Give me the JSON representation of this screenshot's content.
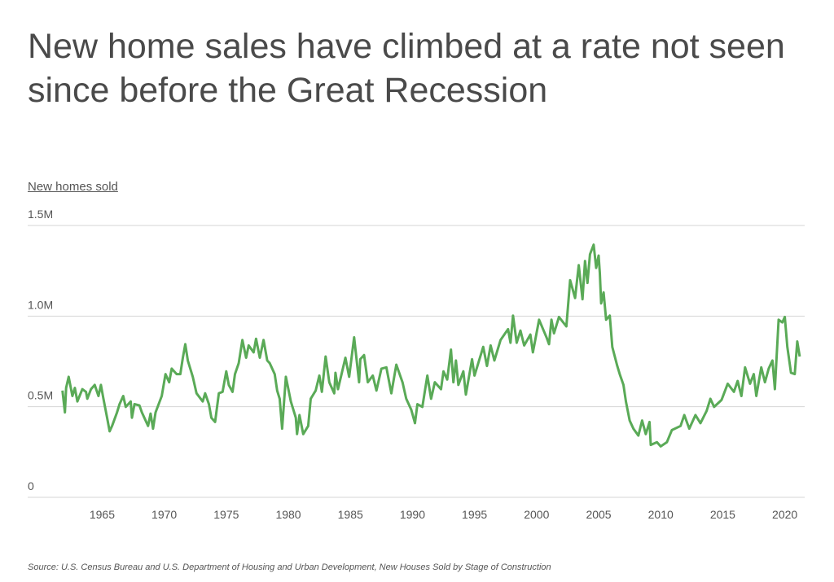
{
  "chart_data": {
    "type": "line",
    "title": "New home sales have climbed at a rate not seen since before the Great Recession",
    "ylabel": "New homes sold",
    "xlabel": "",
    "source": "Source:  U.S. Census Bureau and U.S. Department of Housing and Urban Development, New Houses Sold by Stage of Construction",
    "xlim": [
      1959,
      2021.6
    ],
    "ylim": [
      0,
      1.5
    ],
    "grid": true,
    "line_color": "#5aaa57",
    "x_ticks": [
      1965,
      1970,
      1975,
      1980,
      1985,
      1990,
      1995,
      2000,
      2005,
      2010,
      2015,
      2020
    ],
    "x_tick_labels": [
      "1965",
      "1970",
      "1975",
      "1980",
      "1985",
      "1990",
      "1995",
      "2000",
      "2005",
      "2010",
      "2015",
      "2020"
    ],
    "y_ticks": [
      0,
      0.5,
      1.0,
      1.5
    ],
    "y_tick_labels": [
      "0",
      "0.5M",
      "1.0M",
      "1.5M"
    ],
    "series": [
      {
        "x": [
          1961.8,
          1962.0,
          1962.1,
          1962.3,
          1962.6,
          1962.8,
          1963.0,
          1963.4,
          1963.7,
          1963.8,
          1964.1,
          1964.4,
          1964.7,
          1964.9,
          1965.1,
          1965.4,
          1965.6,
          1965.8,
          1966.2,
          1966.4,
          1966.7,
          1966.9,
          1967.3,
          1967.4,
          1967.6,
          1968.0,
          1968.2,
          1968.7,
          1968.9,
          1969.1,
          1969.3,
          1969.8,
          1970.1,
          1970.4,
          1970.6,
          1971.0,
          1971.3,
          1971.5,
          1971.7,
          1971.9,
          1972.3,
          1972.6,
          1973.1,
          1973.3,
          1973.6,
          1973.8,
          1974.1,
          1974.4,
          1974.7,
          1975.0,
          1975.2,
          1975.5,
          1975.7,
          1976.0,
          1976.3,
          1976.6,
          1976.8,
          1977.2,
          1977.4,
          1977.7,
          1978.0,
          1978.3,
          1978.5,
          1978.9,
          1979.1,
          1979.3,
          1979.5,
          1979.8,
          1980.2,
          1980.6,
          1980.7,
          1980.9,
          1981.2,
          1981.6,
          1981.8,
          1982.2,
          1982.5,
          1982.7,
          1983.0,
          1983.3,
          1983.7,
          1983.8,
          1984.0,
          1984.6,
          1984.9,
          1985.3,
          1985.7,
          1985.8,
          1986.1,
          1986.4,
          1986.8,
          1987.1,
          1987.5,
          1987.9,
          1988.3,
          1988.7,
          1989.2,
          1989.5,
          1989.9,
          1990.2,
          1990.4,
          1990.8,
          1991.2,
          1991.5,
          1991.8,
          1992.3,
          1992.5,
          1992.8,
          1993.1,
          1993.3,
          1993.5,
          1993.7,
          1994.1,
          1994.3,
          1994.8,
          1995.0,
          1995.4,
          1995.7,
          1996.0,
          1996.3,
          1996.6,
          1997.1,
          1997.7,
          1997.9,
          1998.1,
          1998.4,
          1998.7,
          1999.0,
          1999.5,
          1999.7,
          2000.2,
          2000.8,
          2001.0,
          2001.2,
          2001.4,
          2001.8,
          2002.4,
          2002.7,
          2003.1,
          2003.4,
          2003.7,
          2003.9,
          2004.1,
          2004.3,
          2004.6,
          2004.8,
          2005.0,
          2005.1,
          2005.2,
          2005.4,
          2005.6,
          2005.9,
          2006.1,
          2006.5,
          2006.7,
          2007.0,
          2007.2,
          2007.5,
          2007.8,
          2008.2,
          2008.5,
          2008.8,
          2009.1,
          2009.2,
          2009.7,
          2010.0,
          2010.5,
          2010.9,
          2011.6,
          2011.9,
          2012.3,
          2012.8,
          2013.2,
          2013.7,
          2014.0,
          2014.3,
          2014.9,
          2015.4,
          2015.9,
          2016.2,
          2016.5,
          2016.8,
          2017.2,
          2017.5,
          2017.7,
          2018.1,
          2018.4,
          2018.7,
          2019.0,
          2019.2,
          2019.5,
          2019.8,
          2020.0,
          2020.2,
          2020.5,
          2020.8,
          2021.0,
          2021.2
        ],
        "y": [
          0.589,
          0.469,
          0.604,
          0.665,
          0.559,
          0.604,
          0.529,
          0.597,
          0.582,
          0.544,
          0.597,
          0.62,
          0.559,
          0.62,
          0.544,
          0.439,
          0.364,
          0.394,
          0.469,
          0.514,
          0.559,
          0.499,
          0.529,
          0.439,
          0.514,
          0.507,
          0.469,
          0.394,
          0.462,
          0.379,
          0.469,
          0.559,
          0.68,
          0.635,
          0.71,
          0.68,
          0.68,
          0.77,
          0.845,
          0.755,
          0.665,
          0.574,
          0.529,
          0.574,
          0.514,
          0.439,
          0.416,
          0.574,
          0.582,
          0.695,
          0.62,
          0.582,
          0.68,
          0.74,
          0.868,
          0.77,
          0.838,
          0.8,
          0.875,
          0.77,
          0.868,
          0.755,
          0.74,
          0.68,
          0.589,
          0.544,
          0.379,
          0.665,
          0.529,
          0.439,
          0.349,
          0.454,
          0.349,
          0.394,
          0.544,
          0.589,
          0.672,
          0.582,
          0.777,
          0.635,
          0.574,
          0.687,
          0.597,
          0.77,
          0.665,
          0.883,
          0.635,
          0.762,
          0.785,
          0.635,
          0.672,
          0.589,
          0.71,
          0.717,
          0.574,
          0.732,
          0.635,
          0.544,
          0.484,
          0.409,
          0.514,
          0.499,
          0.672,
          0.544,
          0.635,
          0.597,
          0.695,
          0.65,
          0.815,
          0.635,
          0.755,
          0.62,
          0.695,
          0.567,
          0.762,
          0.672,
          0.762,
          0.83,
          0.725,
          0.838,
          0.755,
          0.868,
          0.928,
          0.853,
          1.003,
          0.853,
          0.92,
          0.838,
          0.898,
          0.8,
          0.98,
          0.883,
          0.845,
          0.98,
          0.905,
          0.995,
          0.943,
          1.198,
          1.1,
          1.281,
          1.093,
          1.304,
          1.183,
          1.341,
          1.394,
          1.266,
          1.334,
          1.236,
          1.07,
          1.131,
          0.98,
          1.003,
          0.83,
          0.725,
          0.68,
          0.62,
          0.529,
          0.424,
          0.379,
          0.341,
          0.424,
          0.349,
          0.416,
          0.289,
          0.304,
          0.281,
          0.304,
          0.371,
          0.394,
          0.454,
          0.379,
          0.454,
          0.409,
          0.477,
          0.544,
          0.499,
          0.537,
          0.627,
          0.582,
          0.642,
          0.559,
          0.717,
          0.627,
          0.68,
          0.559,
          0.717,
          0.635,
          0.71,
          0.755,
          0.597,
          0.98,
          0.965,
          0.995,
          0.83,
          0.687,
          0.68,
          0.86,
          0.777
        ]
      }
    ]
  }
}
